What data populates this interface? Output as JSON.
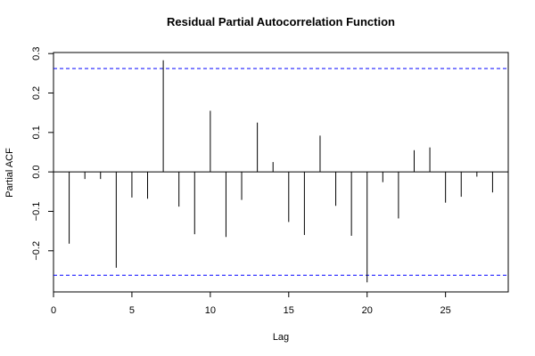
{
  "chart_data": {
    "type": "bar",
    "title": "Residual Partial Autocorrelation Function",
    "xlabel": "Lag",
    "ylabel": "Partial ACF",
    "xlim": [
      0,
      29
    ],
    "ylim": [
      -0.3,
      0.3
    ],
    "x_ticks": [
      0,
      5,
      10,
      15,
      20,
      25
    ],
    "y_ticks": [
      -0.2,
      -0.1,
      0.0,
      0.1,
      0.2,
      0.3
    ],
    "x_tick_labels": [
      "0",
      "5",
      "10",
      "15",
      "20",
      "25"
    ],
    "y_tick_labels": [
      "−0.2",
      "−0.1",
      "0.0",
      "0.1",
      "0.2",
      "0.3"
    ],
    "lags": [
      1,
      2,
      3,
      4,
      5,
      6,
      7,
      8,
      9,
      10,
      11,
      12,
      13,
      14,
      15,
      16,
      17,
      18,
      19,
      20,
      21,
      22,
      23,
      24,
      25,
      26,
      27,
      28
    ],
    "values": [
      -0.182,
      -0.018,
      -0.018,
      -0.243,
      -0.065,
      -0.068,
      0.283,
      -0.088,
      -0.158,
      0.155,
      -0.165,
      -0.071,
      0.125,
      0.025,
      -0.127,
      -0.16,
      0.092,
      -0.086,
      -0.162,
      -0.28,
      -0.026,
      -0.118,
      0.055,
      0.062,
      -0.078,
      -0.063,
      -0.012,
      -0.052
    ],
    "confidence_bound": 0.262,
    "zero_line": true,
    "grid": false,
    "colors": {
      "bars": "#000000",
      "bounds": "#0000ff",
      "frame": "#000000"
    }
  }
}
